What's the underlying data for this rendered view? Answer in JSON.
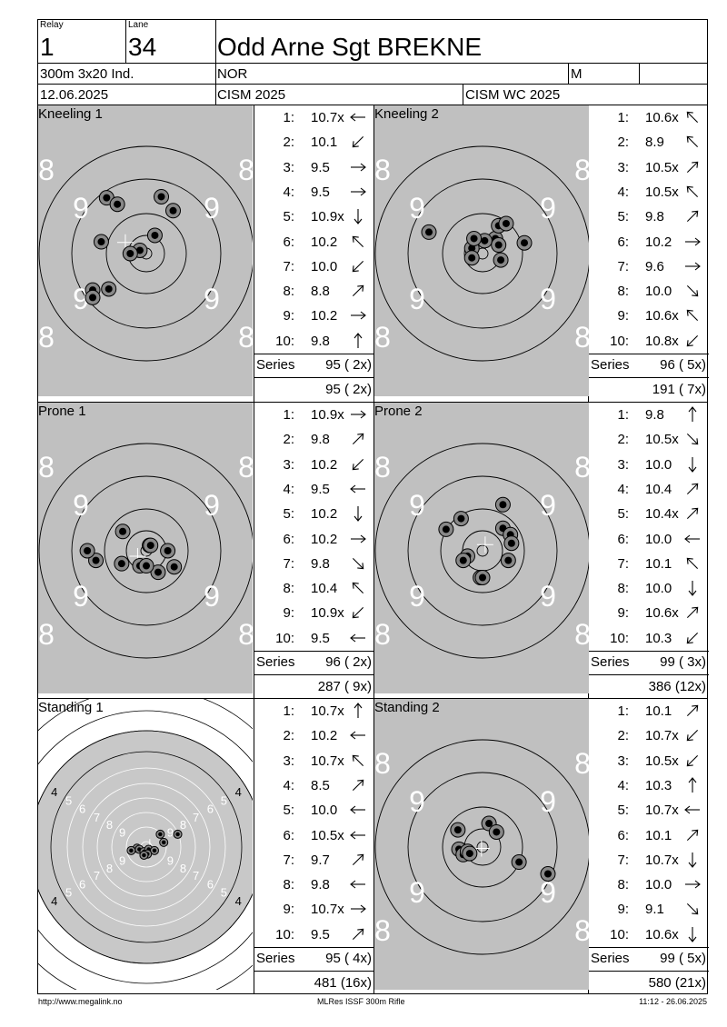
{
  "header": {
    "relay_label": "Relay",
    "relay_value": "1",
    "lane_label": "Lane",
    "lane_value": "34",
    "athlete_name": "Odd Arne Sgt BREKNE",
    "event": "300m 3x20 Ind.",
    "nation": "NOR",
    "gender": "M",
    "date": "12.06.2025",
    "competition": "CISM 2025",
    "match": "CISM WC 2025"
  },
  "series_label": "Series",
  "panels": [
    {
      "title": "Kneeling 1",
      "target": "kneeling",
      "shots": [
        {
          "n": "1:",
          "v": "10.7x",
          "dir": "W"
        },
        {
          "n": "2:",
          "v": "10.1",
          "dir": "SW"
        },
        {
          "n": "3:",
          "v": "9.5",
          "dir": "E"
        },
        {
          "n": "4:",
          "v": "9.5",
          "dir": "E"
        },
        {
          "n": "5:",
          "v": "10.9x",
          "dir": "S"
        },
        {
          "n": "6:",
          "v": "10.2",
          "dir": "NW"
        },
        {
          "n": "7:",
          "v": "10.0",
          "dir": "SW"
        },
        {
          "n": "8:",
          "v": "8.8",
          "dir": "NE"
        },
        {
          "n": "9:",
          "v": "10.2",
          "dir": "E"
        },
        {
          "n": "10:",
          "v": "9.8",
          "dir": "N"
        }
      ],
      "hits": [
        [
          -0.06,
          -0.03
        ],
        [
          0.14,
          -0.53
        ],
        [
          0.08,
          -0.17
        ],
        [
          0.25,
          -0.4
        ],
        [
          -0.15,
          0.0
        ],
        [
          -0.37,
          -0.52
        ],
        [
          -0.5,
          0.34
        ],
        [
          -0.42,
          -0.11
        ],
        [
          -0.5,
          0.41
        ],
        [
          -0.35,
          0.33
        ],
        [
          -0.27,
          -0.46
        ]
      ],
      "series_total": "95 ( 2x)",
      "cumulative": "95 ( 2x)"
    },
    {
      "title": "Kneeling 2",
      "target": "kneeling",
      "shots": [
        {
          "n": "1:",
          "v": "10.6x",
          "dir": "NW"
        },
        {
          "n": "2:",
          "v": "8.9",
          "dir": "NW"
        },
        {
          "n": "3:",
          "v": "10.5x",
          "dir": "NE"
        },
        {
          "n": "4:",
          "v": "10.5x",
          "dir": "NW"
        },
        {
          "n": "5:",
          "v": "9.8",
          "dir": "NE"
        },
        {
          "n": "6:",
          "v": "10.2",
          "dir": "E"
        },
        {
          "n": "7:",
          "v": "9.6",
          "dir": "E"
        },
        {
          "n": "8:",
          "v": "10.0",
          "dir": "SE"
        },
        {
          "n": "9:",
          "v": "10.6x",
          "dir": "NW"
        },
        {
          "n": "10:",
          "v": "10.8x",
          "dir": "SW"
        }
      ],
      "hits": [
        [
          -0.1,
          -0.05
        ],
        [
          -0.5,
          -0.2
        ],
        [
          0.12,
          -0.14
        ],
        [
          0.02,
          -0.12
        ],
        [
          -0.08,
          -0.14
        ],
        [
          0.15,
          -0.08
        ],
        [
          -0.1,
          0.04
        ],
        [
          0.17,
          0.06
        ],
        [
          0.15,
          -0.26
        ],
        [
          0.22,
          -0.28
        ],
        [
          0.39,
          -0.1
        ]
      ],
      "series_total": "96 ( 5x)",
      "cumulative": "191 ( 7x)"
    },
    {
      "title": "Prone 1",
      "target": "prone",
      "shots": [
        {
          "n": "1:",
          "v": "10.9x",
          "dir": "E"
        },
        {
          "n": "2:",
          "v": "9.8",
          "dir": "NE"
        },
        {
          "n": "3:",
          "v": "10.2",
          "dir": "SW"
        },
        {
          "n": "4:",
          "v": "9.5",
          "dir": "W"
        },
        {
          "n": "5:",
          "v": "10.2",
          "dir": "S"
        },
        {
          "n": "6:",
          "v": "10.2",
          "dir": "E"
        },
        {
          "n": "7:",
          "v": "9.8",
          "dir": "SE"
        },
        {
          "n": "8:",
          "v": "10.4",
          "dir": "NW"
        },
        {
          "n": "9:",
          "v": "10.9x",
          "dir": "SW"
        },
        {
          "n": "10:",
          "v": "9.5",
          "dir": "W"
        }
      ],
      "hits": [
        [
          0.03,
          -0.05
        ],
        [
          0.04,
          -0.05
        ],
        [
          -0.22,
          -0.18
        ],
        [
          0.2,
          0.0
        ],
        [
          -0.06,
          0.14
        ],
        [
          -0.23,
          0.12
        ],
        [
          -0.47,
          0.09
        ],
        [
          -0.55,
          0.0
        ],
        [
          0.26,
          0.15
        ],
        [
          0.11,
          0.2
        ],
        [
          0.0,
          0.14
        ]
      ],
      "series_total": "96 ( 2x)",
      "cumulative": "287 ( 9x)"
    },
    {
      "title": "Prone 2",
      "target": "prone",
      "shots": [
        {
          "n": "1:",
          "v": "9.8",
          "dir": "N"
        },
        {
          "n": "2:",
          "v": "10.5x",
          "dir": "SE"
        },
        {
          "n": "3:",
          "v": "10.0",
          "dir": "S"
        },
        {
          "n": "4:",
          "v": "10.4",
          "dir": "NE"
        },
        {
          "n": "5:",
          "v": "10.4x",
          "dir": "NE"
        },
        {
          "n": "6:",
          "v": "10.0",
          "dir": "W"
        },
        {
          "n": "7:",
          "v": "10.1",
          "dir": "NW"
        },
        {
          "n": "8:",
          "v": "10.0",
          "dir": "S"
        },
        {
          "n": "9:",
          "v": "10.6x",
          "dir": "NE"
        },
        {
          "n": "10:",
          "v": "10.3",
          "dir": "SW"
        }
      ],
      "hits": [
        [
          0.19,
          -0.21
        ],
        [
          -0.2,
          -0.3
        ],
        [
          -0.34,
          -0.2
        ],
        [
          0.26,
          -0.15
        ],
        [
          0.27,
          -0.07
        ],
        [
          -0.14,
          0.05
        ],
        [
          -0.18,
          0.09
        ],
        [
          0.24,
          0.09
        ],
        [
          -0.02,
          0.25
        ],
        [
          0.0,
          0.25
        ],
        [
          0.19,
          -0.43
        ]
      ],
      "series_total": "99 ( 3x)",
      "cumulative": "386 (12x)"
    },
    {
      "title": "Standing 1",
      "target": "standing",
      "shots": [
        {
          "n": "1:",
          "v": "10.7x",
          "dir": "N"
        },
        {
          "n": "2:",
          "v": "10.2",
          "dir": "W"
        },
        {
          "n": "3:",
          "v": "10.7x",
          "dir": "NW"
        },
        {
          "n": "4:",
          "v": "8.5",
          "dir": "NE"
        },
        {
          "n": "5:",
          "v": "10.0",
          "dir": "W"
        },
        {
          "n": "6:",
          "v": "10.5x",
          "dir": "W"
        },
        {
          "n": "7:",
          "v": "9.7",
          "dir": "NE"
        },
        {
          "n": "8:",
          "v": "9.8",
          "dir": "W"
        },
        {
          "n": "9:",
          "v": "10.7x",
          "dir": "E"
        },
        {
          "n": "10:",
          "v": "9.5",
          "dir": "NE"
        }
      ],
      "hits": [
        [
          -0.08,
          0.01
        ],
        [
          -0.06,
          0.02
        ],
        [
          -0.02,
          0.04
        ],
        [
          0.02,
          0.02
        ],
        [
          0.07,
          0.03
        ],
        [
          0.01,
          0.06
        ],
        [
          -0.02,
          0.07
        ],
        [
          0.12,
          -0.11
        ],
        [
          0.15,
          -0.04
        ],
        [
          0.27,
          -0.11
        ],
        [
          -0.13,
          0.03
        ]
      ],
      "series_total": "95 ( 4x)",
      "cumulative": "481 (16x)"
    },
    {
      "title": "Standing 2",
      "target": "kneeling",
      "shots": [
        {
          "n": "1:",
          "v": "10.1",
          "dir": "NE"
        },
        {
          "n": "2:",
          "v": "10.7x",
          "dir": "SW"
        },
        {
          "n": "3:",
          "v": "10.5x",
          "dir": "SW"
        },
        {
          "n": "4:",
          "v": "10.3",
          "dir": "N"
        },
        {
          "n": "5:",
          "v": "10.7x",
          "dir": "W"
        },
        {
          "n": "6:",
          "v": "10.1",
          "dir": "NE"
        },
        {
          "n": "7:",
          "v": "10.7x",
          "dir": "S"
        },
        {
          "n": "8:",
          "v": "10.0",
          "dir": "E"
        },
        {
          "n": "9:",
          "v": "9.1",
          "dir": "SE"
        },
        {
          "n": "10:",
          "v": "10.6x",
          "dir": "S"
        }
      ],
      "hits": [
        [
          -0.2,
          0.03
        ],
        [
          -0.16,
          0.05
        ],
        [
          -0.23,
          -0.16
        ],
        [
          0.06,
          -0.22
        ],
        [
          0.13,
          -0.14
        ],
        [
          -0.22,
          0.02
        ],
        [
          -0.18,
          0.07
        ],
        [
          0.34,
          0.14
        ],
        [
          0.61,
          0.25
        ],
        [
          -0.14,
          0.04
        ],
        [
          -0.12,
          0.06
        ]
      ],
      "series_total": "99 ( 5x)",
      "cumulative": "580 (21x)"
    }
  ],
  "footer": {
    "url": "http://www.megalink.no",
    "software": "MLRes ISSF 300m Rifle",
    "timestamp": "11:12 - 26.06.2025"
  },
  "colors": {
    "target_gray": "#c0c0c0",
    "ring_line": "#000000",
    "ring_number_white": "#ffffff"
  }
}
